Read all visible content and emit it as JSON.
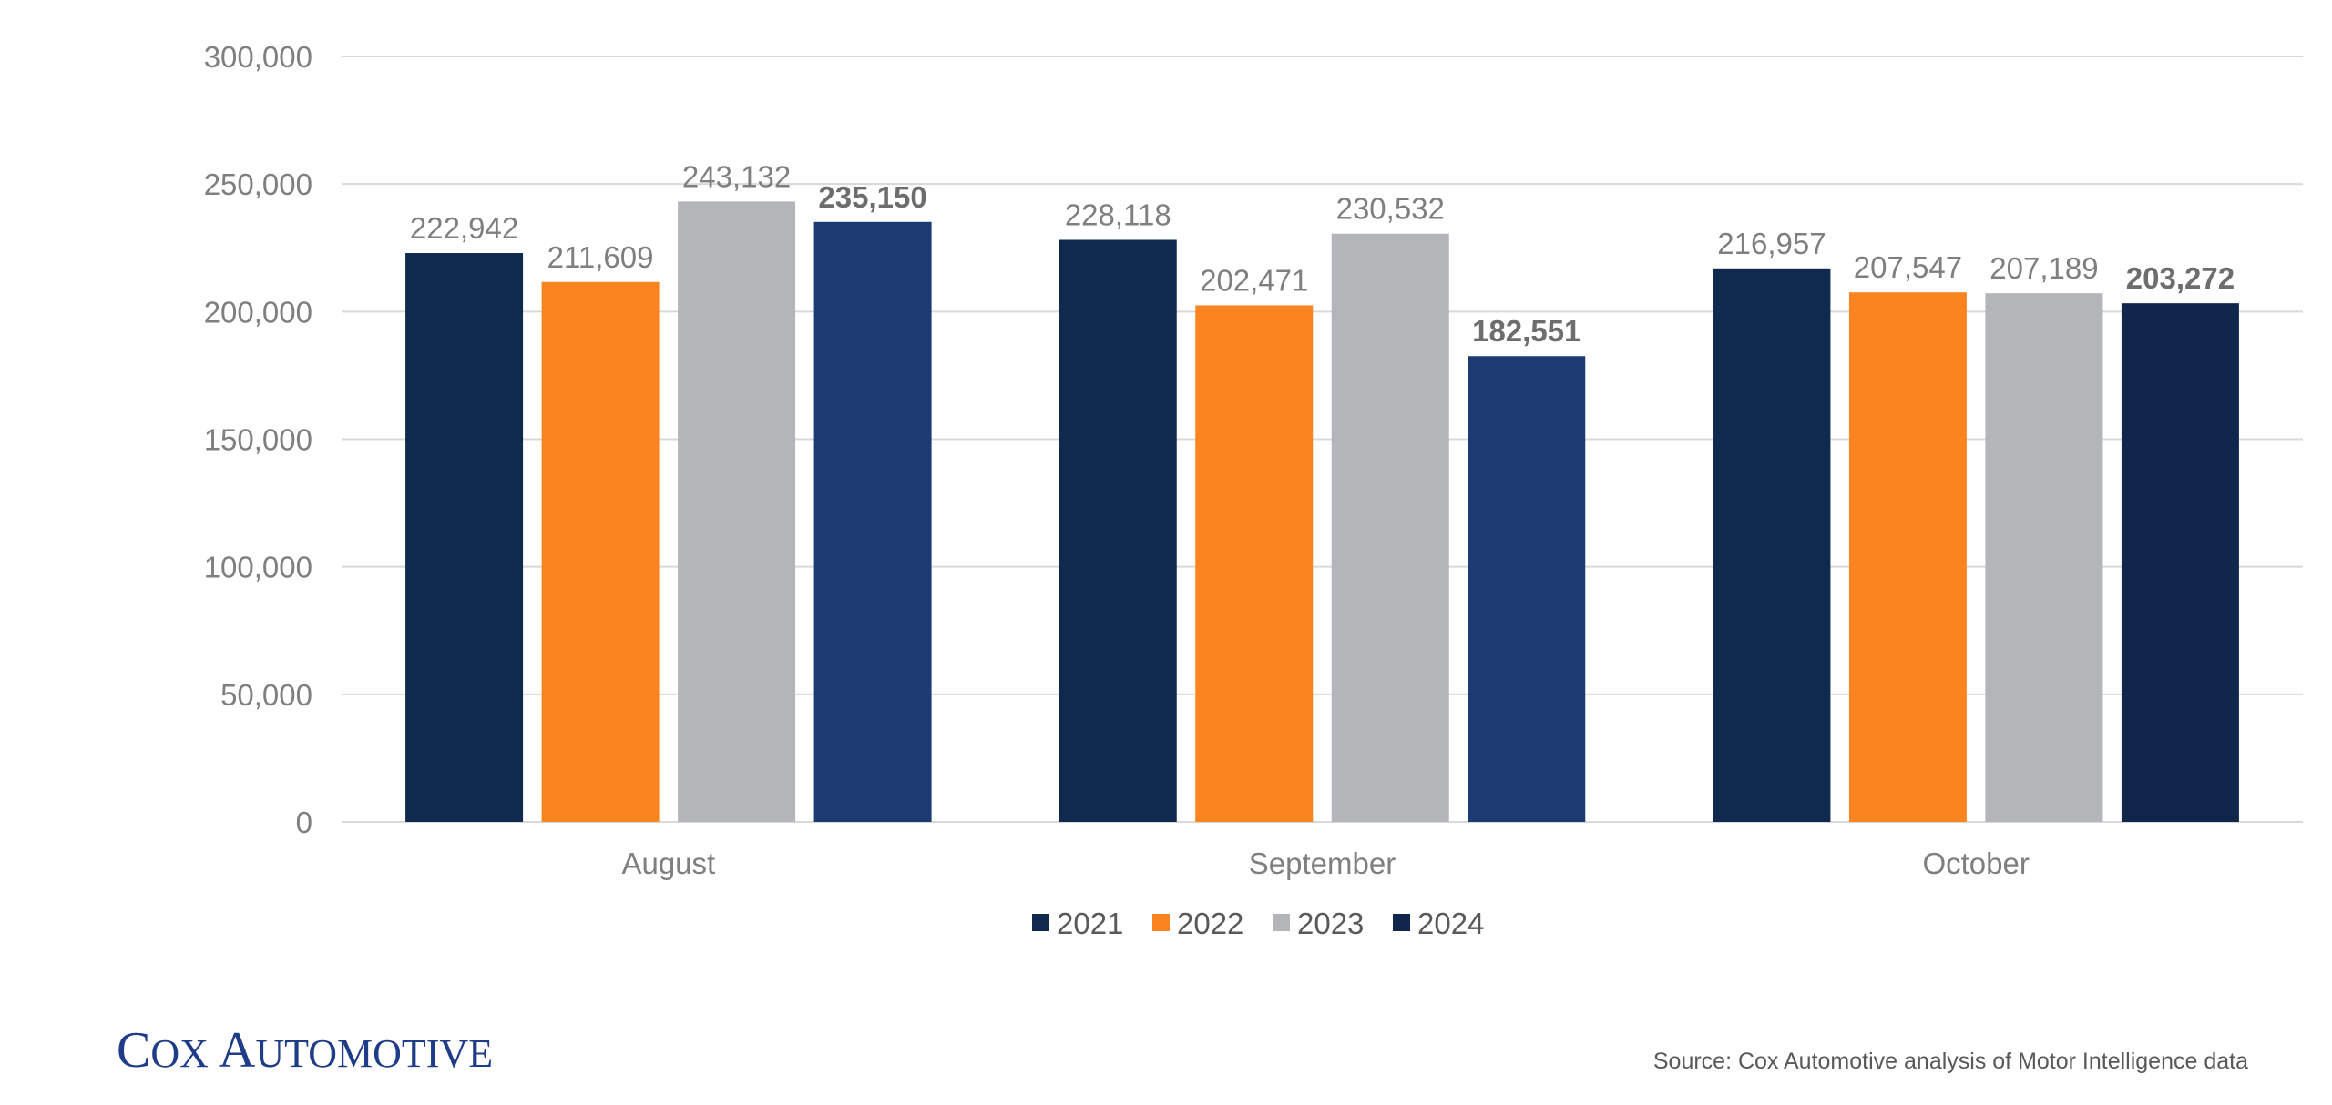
{
  "chart_data": {
    "type": "bar",
    "categories": [
      "August",
      "September",
      "October"
    ],
    "series": [
      {
        "name": "2021",
        "values": [
          222942,
          228118,
          216957
        ],
        "color": "#0f2a4e",
        "labels": [
          "222,942",
          "228,118",
          "216,957"
        ]
      },
      {
        "name": "2022",
        "values": [
          211609,
          202471,
          207547
        ],
        "color": "#fa841f",
        "labels": [
          "211,609",
          "202,471",
          "207,547"
        ]
      },
      {
        "name": "2023",
        "values": [
          243132,
          230532,
          207189
        ],
        "color": "#b3b5b8",
        "labels": [
          "243,132",
          "230,532",
          "207,189"
        ]
      },
      {
        "name": "2024",
        "values": [
          235150,
          182551,
          203272
        ],
        "colors": [
          "#1d3b73",
          "#1d3b73",
          "#11264a"
        ],
        "labels": [
          "235,150",
          "182,551",
          "203,272"
        ],
        "bold_labels": true
      }
    ],
    "ylim": [
      0,
      300000
    ],
    "yticks": [
      "0",
      "50,000",
      "100,000",
      "150,000",
      "200,000",
      "250,000",
      "300,000"
    ],
    "ytick_values": [
      0,
      50000,
      100000,
      150000,
      200000,
      250000,
      300000
    ],
    "grid": true,
    "legend_position": "bottom",
    "title": "",
    "xlabel": "",
    "ylabel": ""
  },
  "branding": {
    "logo_first": "C",
    "logo_rest1": "OX ",
    "logo_second": "A",
    "logo_rest2": "UTOMOTIVE"
  },
  "source_note": "Source: Cox Automotive analysis of Motor Intelligence data"
}
